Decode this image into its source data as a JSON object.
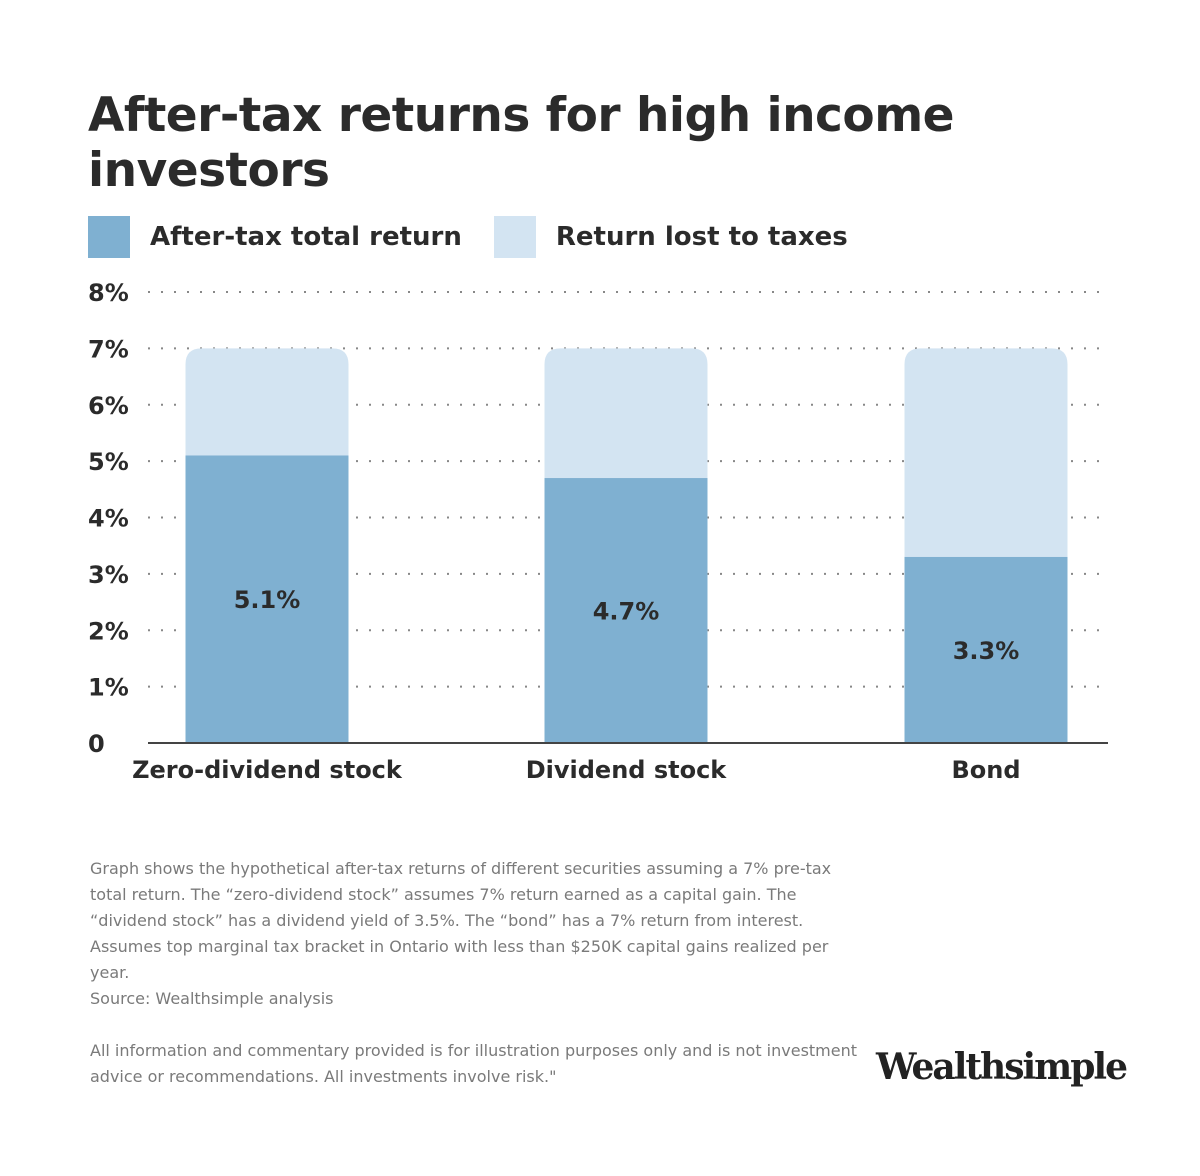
{
  "chart_data": {
    "type": "bar",
    "stacked": true,
    "title": "After-tax returns for high income investors",
    "categories": [
      "Zero-dividend stock",
      "Dividend stock",
      "Bond"
    ],
    "series": [
      {
        "name": "After-tax total return",
        "values": [
          5.1,
          4.7,
          3.3
        ],
        "color": "#7fb0d1"
      },
      {
        "name": "Return lost to taxes",
        "values": [
          1.9,
          2.3,
          3.7
        ],
        "color": "#d3e4f2"
      }
    ],
    "data_labels": [
      "5.1%",
      "4.7%",
      "3.3%"
    ],
    "ylim": [
      0,
      8
    ],
    "yticks": [
      "0",
      "1%",
      "2%",
      "3%",
      "4%",
      "5%",
      "6%",
      "7%",
      "8%"
    ],
    "grid": "dotted horizontal",
    "legend_placement": "top-left"
  },
  "footnotes": {
    "description": "Graph shows the hypothetical after-tax returns of different securities assuming a 7% pre-tax total return. The “zero-dividend stock” assumes 7% return earned as a capital gain. The “dividend stock” has a dividend yield of 3.5%. The “bond” has a 7% return from interest. Assumes top marginal tax bracket in Ontario with less than $250K capital gains realized per year.",
    "source": "Source: Wealthsimple analysis",
    "disclaimer": "All information and commentary provided is for illustration purposes only and is not investment advice or recommendations. All investments involve risk.\""
  },
  "logo": "Wealthsimple"
}
